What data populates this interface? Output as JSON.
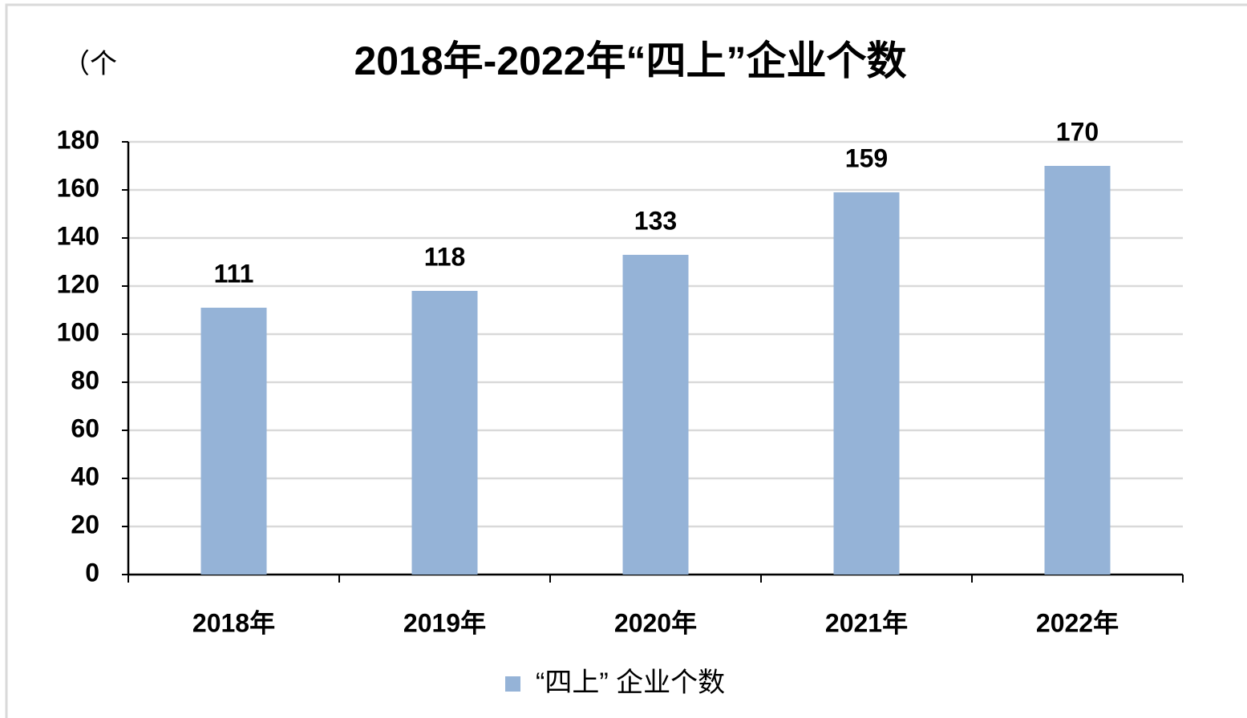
{
  "chart_data": {
    "type": "bar",
    "title": "2018年-2022年“四上”企业个数",
    "y_axis_label": "（个",
    "categories": [
      "2018年",
      "2019年",
      "2020年",
      "2021年",
      "2022年"
    ],
    "series": [
      {
        "name": "“四上” 企业个数",
        "color": "#95b3d7",
        "values": [
          111,
          118,
          133,
          159,
          170
        ]
      }
    ],
    "ylim": [
      0,
      180
    ],
    "yticks": [
      0,
      20,
      40,
      60,
      80,
      100,
      120,
      140,
      160,
      180
    ],
    "grid": true,
    "legend": "bottom",
    "data_labels": true
  }
}
